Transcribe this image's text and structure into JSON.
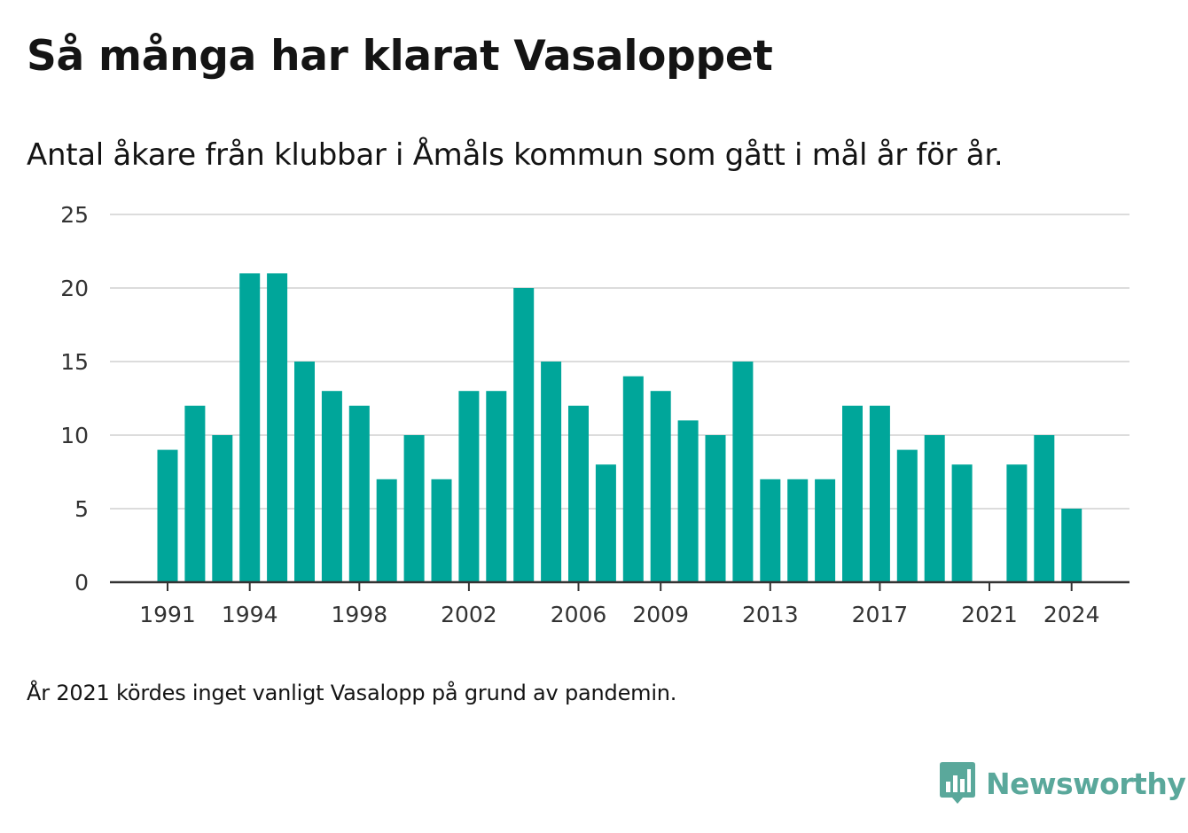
{
  "header": {
    "title": "Så många har klarat Vasaloppet",
    "subtitle": "Antal åkare från klubbar i Åmåls kommun som gått i mål år för år."
  },
  "footer": {
    "note": "År 2021 kördes inget vanligt Vasalopp på grund av pandemin.",
    "brand": "Newsworthy",
    "brand_icon": "newsworthy-logo-icon"
  },
  "colors": {
    "bar": "#00a69a",
    "grid": "#dcdcdc",
    "axis": "#333333",
    "text": "#141414",
    "brand": "#5aa89b"
  },
  "chart_data": {
    "type": "bar",
    "title": "Så många har klarat Vasaloppet",
    "subtitle": "Antal åkare från klubbar i Åmåls kommun som gått i mål år för år.",
    "xlabel": "",
    "ylabel": "",
    "categories": [
      1991,
      1992,
      1993,
      1994,
      1995,
      1996,
      1997,
      1998,
      1999,
      2000,
      2001,
      2002,
      2003,
      2004,
      2005,
      2006,
      2007,
      2008,
      2009,
      2010,
      2011,
      2012,
      2013,
      2014,
      2015,
      2016,
      2017,
      2018,
      2019,
      2020,
      2021,
      2022,
      2023,
      2024
    ],
    "values": [
      9,
      12,
      10,
      21,
      21,
      15,
      13,
      12,
      7,
      10,
      7,
      13,
      13,
      20,
      15,
      12,
      8,
      14,
      13,
      11,
      10,
      15,
      7,
      7,
      7,
      12,
      12,
      9,
      10,
      8,
      0,
      8,
      10,
      5
    ],
    "ylim": [
      0,
      25
    ],
    "yticks": [
      0,
      5,
      10,
      15,
      20,
      25
    ],
    "xtick_labels": [
      "1991",
      "1994",
      "1998",
      "2002",
      "2006",
      "2009",
      "2013",
      "2017",
      "2021",
      "2024"
    ],
    "grid": true,
    "legend": "none"
  }
}
